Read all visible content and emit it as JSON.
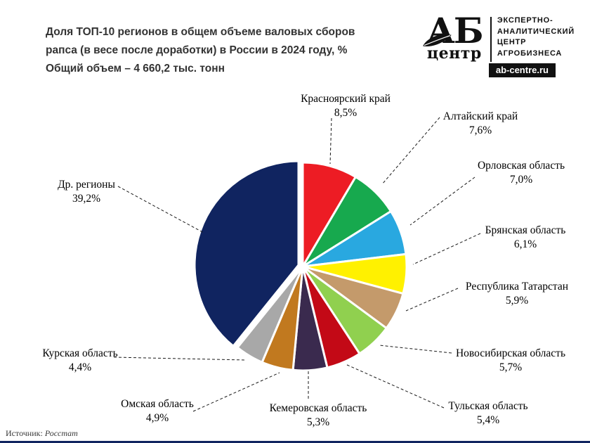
{
  "header": {
    "title_lines": [
      "Доля ТОП-10 регионов в общем объеме валовых сборов",
      "рапса (в весе после доработки) в России в 2024 году, %",
      "Общий объем – 4 660,2 тыс. тонн"
    ]
  },
  "logo": {
    "abbr": "АБ",
    "abbr_sub": "центр",
    "org_lines": [
      "ЭКСПЕРТНО-",
      "АНАЛИТИЧЕСКИЙ",
      "ЦЕНТР",
      "АГРОБИЗНЕСА"
    ],
    "site": "ab-centre.ru"
  },
  "chart_data": {
    "type": "pie",
    "title": "Доля ТОП-10 регионов в общем объеме валовых сборов рапса (в весе после доработки) в России в 2024 году, %",
    "subtitle": "Общий объем – 4 660,2 тыс. тонн",
    "unit": "%",
    "decimal_separator": ",",
    "start_angle_deg": 0,
    "direction": "clockwise",
    "slices": [
      {
        "label": "Красноярский край",
        "value": 8.5,
        "color": "#ED1C24"
      },
      {
        "label": "Алтайский край",
        "value": 7.6,
        "color": "#17A94E"
      },
      {
        "label": "Орловская область",
        "value": 7.0,
        "color": "#29A8E0"
      },
      {
        "label": "Брянская область",
        "value": 6.1,
        "color": "#FFF100"
      },
      {
        "label": "Республика Татарстан",
        "value": 5.9,
        "color": "#C49A6B"
      },
      {
        "label": "Новосибирская область",
        "value": 5.7,
        "color": "#90D04F"
      },
      {
        "label": "Тульская область",
        "value": 5.4,
        "color": "#C30916"
      },
      {
        "label": "Кемеровская область",
        "value": 5.3,
        "color": "#3A2A4E"
      },
      {
        "label": "Омская область",
        "value": 4.9,
        "color": "#C1791F"
      },
      {
        "label": "Курская область",
        "value": 4.4,
        "color": "#A8A8A8"
      },
      {
        "label": "Др. регионы",
        "value": 39.2,
        "color": "#102460"
      }
    ]
  },
  "footer": {
    "source_label": "Источник:",
    "source_value": "Росстат"
  }
}
